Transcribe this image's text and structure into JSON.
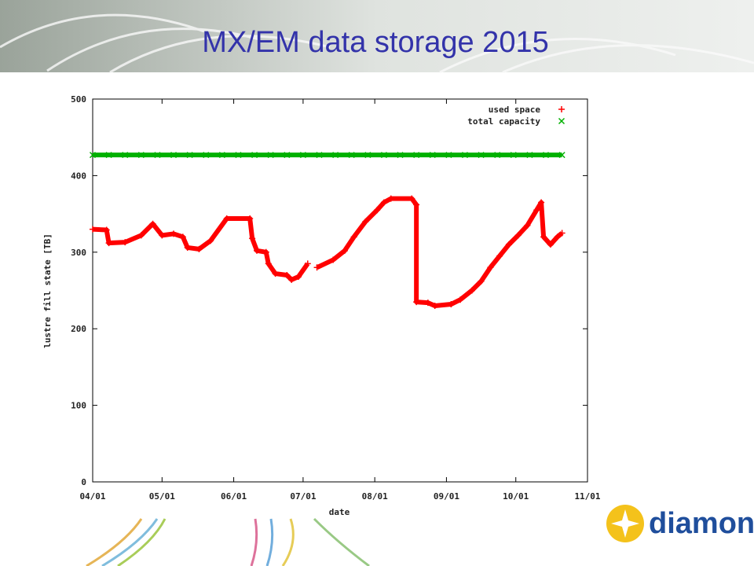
{
  "chart_data": {
    "type": "scatter",
    "title": "MX/EM data storage 2015",
    "x_label": "date",
    "y_label": "lustre fill state [TB]",
    "xlim": [
      "04/01",
      "11/01"
    ],
    "xticks": [
      "04/01",
      "05/01",
      "06/01",
      "07/01",
      "08/01",
      "09/01",
      "10/01",
      "11/01"
    ],
    "ylim": [
      0,
      500
    ],
    "yticks": [
      0,
      100,
      200,
      300,
      400,
      500
    ],
    "legend": "upper right",
    "series": [
      {
        "name": "used space",
        "color": "#ff0000",
        "x": [
          "04/01",
          "04/07",
          "04/08",
          "04/15",
          "04/22",
          "04/27",
          "05/01",
          "05/06",
          "05/10",
          "05/12",
          "05/17",
          "05/22",
          "05/29",
          "06/08",
          "06/09",
          "06/11",
          "06/15",
          "06/16",
          "06/19",
          "06/24",
          "06/26",
          "06/29",
          "07/03",
          "07/05",
          "07/07",
          "07/14",
          "07/19",
          "07/23",
          "07/28",
          "08/02",
          "08/05",
          "08/08",
          "08/17",
          "08/19",
          "08/19",
          "08/24",
          "08/27",
          "09/03",
          "09/07",
          "09/12",
          "09/16",
          "09/20",
          "09/24",
          "09/28",
          "10/02",
          "10/06",
          "10/10",
          "10/12",
          "10/13",
          "10/16",
          "10/19",
          "10/21"
        ],
        "values": [
          330,
          329,
          312,
          313,
          322,
          337,
          322,
          324,
          320,
          306,
          304,
          315,
          344,
          344,
          318,
          302,
          300,
          285,
          272,
          270,
          264,
          268,
          285,
          null,
          280,
          290,
          302,
          320,
          340,
          355,
          365,
          370,
          370,
          362,
          235,
          234,
          230,
          232,
          238,
          250,
          262,
          280,
          295,
          310,
          322,
          335,
          355,
          365,
          320,
          310,
          320,
          325
        ]
      },
      {
        "name": "total capacity",
        "color": "#00b000",
        "x": [
          "04/01",
          "04/08",
          "04/15",
          "04/22",
          "04/29",
          "05/06",
          "05/13",
          "05/20",
          "05/27",
          "06/03",
          "06/10",
          "06/17",
          "06/24",
          "07/01",
          "07/08",
          "07/15",
          "07/22",
          "07/29",
          "08/05",
          "08/12",
          "08/19",
          "08/26",
          "09/02",
          "09/09",
          "09/16",
          "09/23",
          "09/30",
          "10/07",
          "10/14",
          "10/21"
        ],
        "values": [
          427,
          427,
          427,
          427,
          427,
          427,
          427,
          427,
          427,
          427,
          427,
          427,
          427,
          427,
          427,
          427,
          427,
          427,
          427,
          427,
          427,
          427,
          427,
          427,
          427,
          427,
          427,
          427,
          427,
          427
        ]
      }
    ]
  },
  "logo": "diamond"
}
